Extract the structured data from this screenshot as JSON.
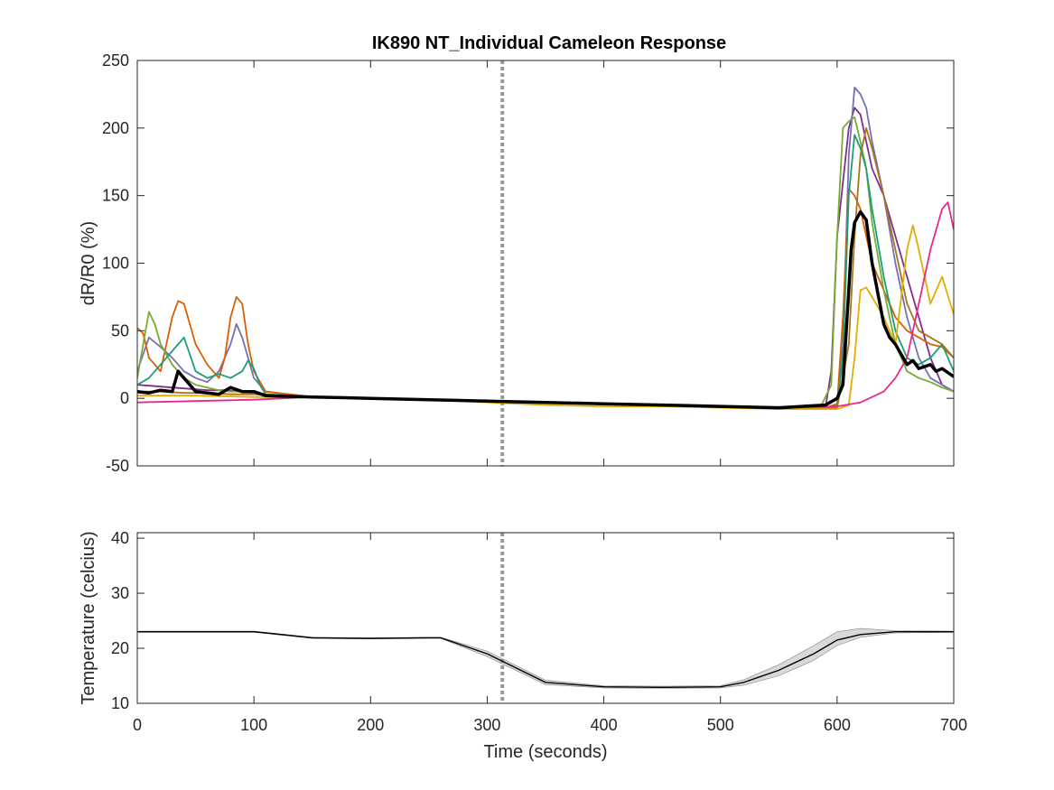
{
  "chart_data": [
    {
      "type": "line",
      "title": "IK890 NT_Individual Cameleon Response",
      "xlabel": "",
      "ylabel": "dR/R0 (%)",
      "xlim": [
        0,
        700
      ],
      "ylim": [
        -50,
        250
      ],
      "xticks": [
        0,
        100,
        200,
        300,
        400,
        500,
        600,
        700
      ],
      "yticks": [
        -50,
        0,
        50,
        100,
        150,
        200,
        250
      ],
      "yticklabels": [
        "-50",
        "0",
        "50",
        "100",
        "150",
        "200",
        "250"
      ],
      "show_xticklabels": false,
      "marker_line": {
        "x": 313,
        "style": "dotted",
        "color": "#999999"
      },
      "series": [
        {
          "color": "#7E2F8E",
          "x": [
            0,
            15,
            30,
            45,
            60,
            75,
            90,
            110,
            150,
            200,
            250,
            300,
            350,
            400,
            450,
            500,
            550,
            590,
            595,
            600,
            610,
            615,
            620,
            625,
            630,
            640,
            650,
            660,
            670,
            680,
            690,
            700
          ],
          "y": [
            10,
            9,
            8,
            7,
            6,
            6,
            5,
            3,
            1,
            0,
            -1,
            -2,
            -3,
            -4,
            -5,
            -6,
            -7,
            -7,
            20,
            120,
            200,
            215,
            210,
            190,
            170,
            150,
            120,
            90,
            60,
            30,
            10,
            5
          ]
        },
        {
          "color": "#7570B3",
          "x": [
            0,
            10,
            20,
            30,
            40,
            50,
            60,
            70,
            80,
            85,
            90,
            95,
            100,
            110,
            150,
            200,
            250,
            300,
            350,
            400,
            450,
            500,
            550,
            590,
            600,
            605,
            610,
            615,
            620,
            625,
            630,
            640,
            650,
            660,
            670,
            680,
            690,
            700
          ],
          "y": [
            20,
            45,
            38,
            30,
            20,
            15,
            12,
            20,
            40,
            55,
            45,
            30,
            15,
            5,
            1,
            0,
            -1,
            -2,
            -3,
            -4,
            -5,
            -6,
            -7,
            -7,
            -5,
            40,
            180,
            230,
            225,
            215,
            190,
            150,
            100,
            60,
            30,
            15,
            10,
            5
          ]
        },
        {
          "color": "#D95F02",
          "x": [
            0,
            5,
            10,
            20,
            30,
            35,
            40,
            50,
            60,
            70,
            75,
            80,
            85,
            90,
            95,
            100,
            110,
            150,
            200,
            250,
            300,
            350,
            400,
            450,
            500,
            550,
            590,
            600,
            605,
            610,
            615,
            620,
            625,
            630,
            640,
            650,
            660,
            670,
            680,
            690,
            700
          ],
          "y": [
            52,
            48,
            30,
            20,
            60,
            72,
            70,
            40,
            25,
            15,
            30,
            60,
            75,
            70,
            40,
            20,
            5,
            1,
            0,
            -1,
            -2,
            -3,
            -4,
            -5,
            -6,
            -7,
            -7,
            -4,
            60,
            155,
            150,
            140,
            120,
            100,
            80,
            60,
            50,
            45,
            40,
            38,
            30
          ]
        },
        {
          "color": "#77AC30",
          "x": [
            0,
            5,
            10,
            15,
            20,
            30,
            40,
            50,
            60,
            70,
            80,
            90,
            100,
            110,
            150,
            200,
            250,
            300,
            350,
            400,
            450,
            500,
            550,
            585,
            595,
            600,
            605,
            610,
            615,
            620,
            625,
            630,
            640,
            650,
            660,
            670,
            680,
            690,
            700
          ],
          "y": [
            15,
            40,
            64,
            55,
            40,
            25,
            15,
            10,
            8,
            6,
            5,
            5,
            4,
            3,
            1,
            0,
            -1,
            -2,
            -3,
            -4,
            -5,
            -6,
            -7,
            -8,
            10,
            120,
            200,
            205,
            208,
            190,
            170,
            130,
            80,
            40,
            20,
            15,
            12,
            8,
            5
          ]
        },
        {
          "color": "#1B9E77",
          "x": [
            0,
            10,
            20,
            30,
            40,
            50,
            60,
            70,
            80,
            90,
            95,
            100,
            105,
            110,
            150,
            200,
            250,
            300,
            350,
            400,
            450,
            500,
            550,
            595,
            600,
            605,
            610,
            615,
            620,
            625,
            630,
            640,
            650,
            660,
            670,
            680,
            690,
            700
          ],
          "y": [
            10,
            15,
            25,
            35,
            45,
            20,
            15,
            18,
            15,
            20,
            28,
            22,
            10,
            3,
            1,
            0,
            -1,
            -2,
            -3,
            -4,
            -5,
            -6,
            -7,
            -8,
            -6,
            30,
            150,
            195,
            185,
            170,
            140,
            90,
            50,
            30,
            25,
            30,
            40,
            20
          ]
        },
        {
          "color": "#A6761D",
          "x": [
            0,
            20,
            40,
            60,
            80,
            100,
            150,
            200,
            250,
            300,
            350,
            400,
            450,
            500,
            550,
            600,
            610,
            615,
            620,
            625,
            630,
            640,
            650,
            660,
            670,
            680,
            690,
            700
          ],
          "y": [
            5,
            5,
            4,
            4,
            3,
            3,
            1,
            0,
            -1,
            -2,
            -3,
            -4,
            -5,
            -6,
            -7,
            -7,
            40,
            120,
            180,
            200,
            185,
            150,
            110,
            70,
            50,
            45,
            40,
            30
          ]
        },
        {
          "color": "#E6AB02",
          "x": [
            0,
            50,
            100,
            150,
            200,
            250,
            300,
            350,
            400,
            450,
            500,
            550,
            600,
            610,
            615,
            620,
            625,
            630,
            640,
            650,
            660,
            665,
            670,
            680,
            690,
            700
          ],
          "y": [
            2,
            2,
            1,
            1,
            0,
            -1,
            -3,
            -5,
            -6,
            -6,
            -7,
            -8,
            -8,
            -5,
            30,
            80,
            82,
            75,
            60,
            40,
            110,
            128,
            110,
            70,
            90,
            62
          ]
        },
        {
          "color": "#E7298A",
          "x": [
            0,
            50,
            100,
            150,
            200,
            250,
            300,
            350,
            400,
            450,
            500,
            550,
            600,
            620,
            640,
            650,
            660,
            670,
            680,
            690,
            695,
            700
          ],
          "y": [
            -3,
            -2,
            -1,
            1,
            0,
            -1,
            -2,
            -3,
            -4,
            -5,
            -6,
            -7,
            -6,
            -3,
            5,
            15,
            30,
            70,
            110,
            140,
            145,
            125
          ]
        },
        {
          "color": "#000000",
          "width": 3.5,
          "x": [
            0,
            10,
            20,
            30,
            35,
            40,
            50,
            60,
            70,
            80,
            90,
            100,
            110,
            150,
            200,
            250,
            300,
            350,
            400,
            450,
            500,
            550,
            590,
            600,
            605,
            610,
            612,
            615,
            620,
            625,
            630,
            640,
            645,
            650,
            660,
            665,
            670,
            680,
            685,
            690,
            700
          ],
          "y": [
            5,
            4,
            6,
            5,
            20,
            15,
            5,
            4,
            3,
            8,
            5,
            5,
            2,
            1,
            0,
            -1,
            -2,
            -3,
            -4,
            -5,
            -6,
            -7,
            -5,
            0,
            10,
            80,
            110,
            130,
            138,
            132,
            100,
            55,
            45,
            40,
            25,
            28,
            22,
            25,
            20,
            22,
            16
          ]
        }
      ]
    },
    {
      "type": "line",
      "title": "",
      "xlabel": "Time (seconds)",
      "ylabel": "Temperature (celcius)",
      "xlim": [
        0,
        700
      ],
      "ylim": [
        10,
        41
      ],
      "xticks": [
        0,
        100,
        200,
        300,
        400,
        500,
        600,
        700
      ],
      "xticklabels": [
        "0",
        "100",
        "200",
        "300",
        "400",
        "500",
        "600",
        "700"
      ],
      "yticks": [
        10,
        20,
        30,
        40
      ],
      "yticklabels": [
        "10",
        "20",
        "30",
        "40"
      ],
      "marker_line": {
        "x": 313,
        "style": "dotted",
        "color": "#999999"
      },
      "mean": {
        "color": "#000000",
        "x": [
          0,
          100,
          110,
          150,
          200,
          250,
          260,
          300,
          350,
          400,
          450,
          500,
          520,
          550,
          580,
          600,
          620,
          650,
          700
        ],
        "y": [
          23,
          23,
          22.8,
          21.9,
          21.8,
          21.9,
          21.9,
          19.0,
          13.8,
          13.0,
          12.9,
          13.0,
          13.8,
          16.0,
          19.0,
          21.5,
          22.5,
          23,
          23
        ]
      },
      "band": {
        "color": "#d9d9d9",
        "x": [
          0,
          100,
          110,
          150,
          200,
          250,
          260,
          300,
          350,
          400,
          450,
          500,
          520,
          550,
          580,
          600,
          620,
          650,
          700
        ],
        "lower": [
          22.9,
          22.9,
          22.7,
          21.8,
          21.7,
          21.8,
          21.8,
          18.5,
          13.4,
          12.8,
          12.7,
          12.8,
          13.3,
          15.0,
          17.8,
          20.5,
          22.0,
          22.8,
          22.9
        ],
        "upper": [
          23.1,
          23.1,
          22.9,
          22.0,
          21.9,
          22.0,
          22.0,
          19.5,
          14.2,
          13.2,
          13.1,
          13.2,
          14.3,
          17.0,
          20.5,
          23.0,
          23.6,
          23.2,
          23.1
        ]
      }
    }
  ]
}
